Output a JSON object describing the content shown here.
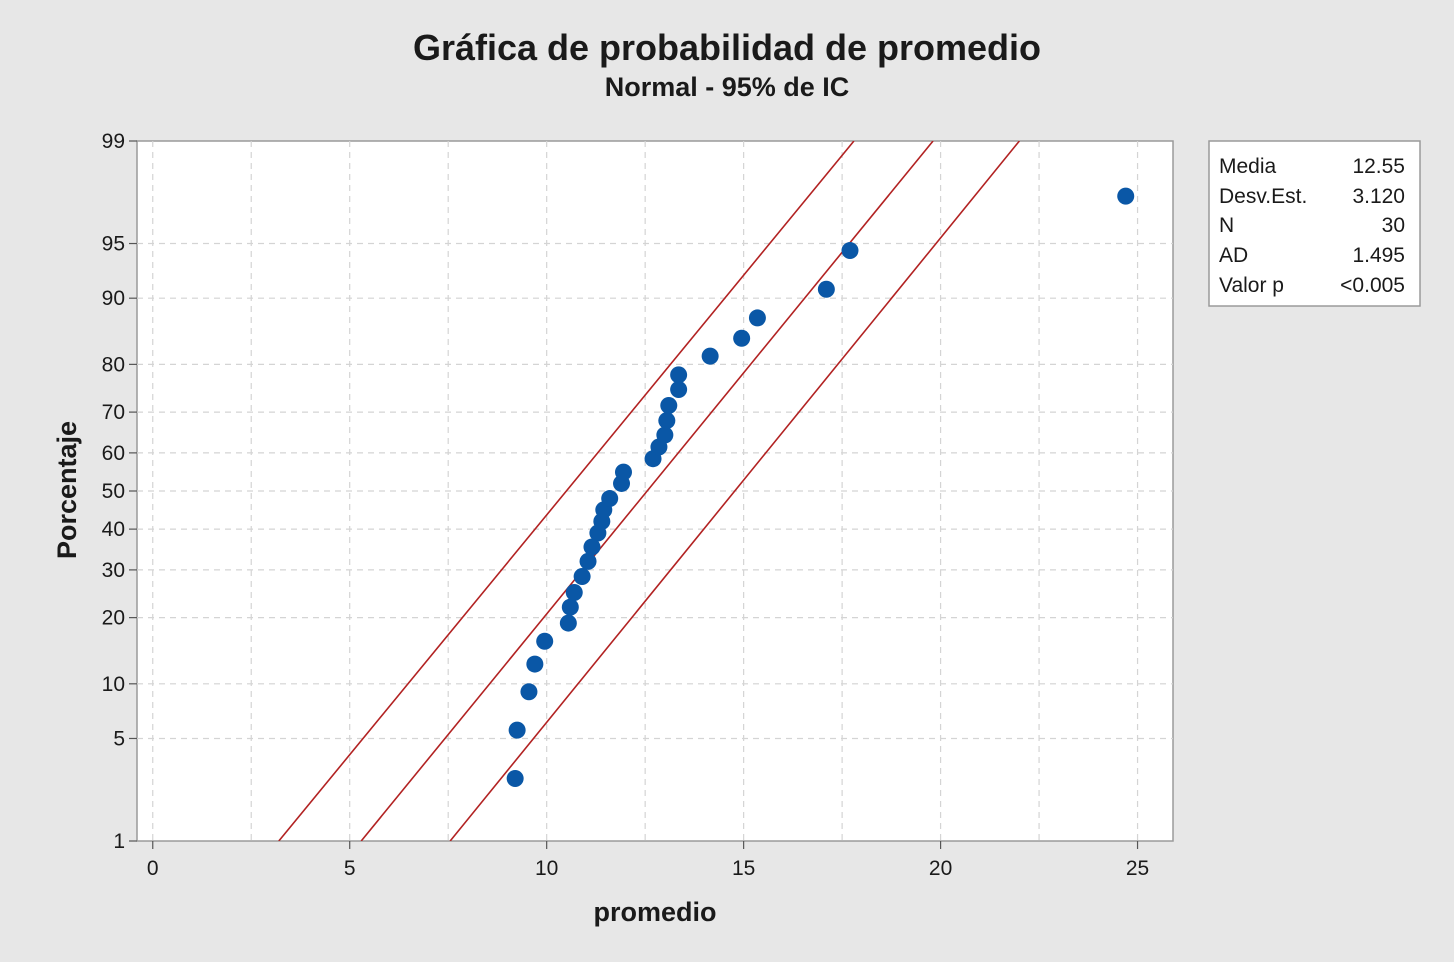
{
  "chart_data": {
    "type": "scatter",
    "subtype": "normal-probability-plot",
    "title": "Gráfica de probabilidad de promedio",
    "subtitle": "Normal - 95% de IC",
    "xlabel": "promedio",
    "ylabel": "Porcentaje",
    "xlim": [
      -0.4,
      25.9
    ],
    "ylim_percent": [
      1,
      99
    ],
    "y_scale": "normal-probability",
    "x_ticks": [
      0,
      5,
      10,
      15,
      20,
      25
    ],
    "y_ticks": [
      1,
      5,
      10,
      20,
      30,
      40,
      50,
      60,
      70,
      80,
      90,
      95,
      99
    ],
    "grid": true,
    "legend_position": "right",
    "points": [
      {
        "x": 9.2,
        "y": 2.8
      },
      {
        "x": 9.25,
        "y": 5.6
      },
      {
        "x": 9.55,
        "y": 9.1
      },
      {
        "x": 9.7,
        "y": 12.5
      },
      {
        "x": 9.95,
        "y": 15.9
      },
      {
        "x": 10.55,
        "y": 19.0
      },
      {
        "x": 10.6,
        "y": 22.0
      },
      {
        "x": 10.7,
        "y": 25.0
      },
      {
        "x": 10.9,
        "y": 28.5
      },
      {
        "x": 11.05,
        "y": 32.0
      },
      {
        "x": 11.15,
        "y": 35.5
      },
      {
        "x": 11.3,
        "y": 39.0
      },
      {
        "x": 11.4,
        "y": 42.0
      },
      {
        "x": 11.45,
        "y": 45.0
      },
      {
        "x": 11.6,
        "y": 48.0
      },
      {
        "x": 11.9,
        "y": 52.0
      },
      {
        "x": 11.95,
        "y": 55.0
      },
      {
        "x": 12.7,
        "y": 58.5
      },
      {
        "x": 12.85,
        "y": 61.5
      },
      {
        "x": 13.0,
        "y": 64.5
      },
      {
        "x": 13.05,
        "y": 68.0
      },
      {
        "x": 13.1,
        "y": 71.5
      },
      {
        "x": 13.35,
        "y": 75.0
      },
      {
        "x": 13.35,
        "y": 78.0
      },
      {
        "x": 14.15,
        "y": 81.5
      },
      {
        "x": 14.95,
        "y": 84.5
      },
      {
        "x": 15.35,
        "y": 87.5
      },
      {
        "x": 17.1,
        "y": 91.0
      },
      {
        "x": 17.7,
        "y": 94.5
      },
      {
        "x": 24.7,
        "y": 97.5
      }
    ],
    "fit_line": {
      "mean": 12.55,
      "sd": 3.12
    },
    "ci_lower": [
      {
        "x": 7.55,
        "y": 1
      },
      {
        "x": 22.0,
        "y": 99
      }
    ],
    "ci_upper": [
      {
        "x": 3.2,
        "y": 1
      },
      {
        "x": 17.8,
        "y": 99
      }
    ],
    "colors": {
      "points": "#0a57a6",
      "lines": "#b22222",
      "plot_bg": "#ffffff",
      "page_bg": "#e7e7e7",
      "grid": "#d4d4d4"
    }
  },
  "stats_box": {
    "rows": [
      {
        "label": "Media",
        "value": "12.55"
      },
      {
        "label": "Desv.Est.",
        "value": "3.120"
      },
      {
        "label": "N",
        "value": "30"
      },
      {
        "label": "AD",
        "value": "1.495"
      },
      {
        "label": "Valor p",
        "value": "<0.005"
      }
    ]
  }
}
